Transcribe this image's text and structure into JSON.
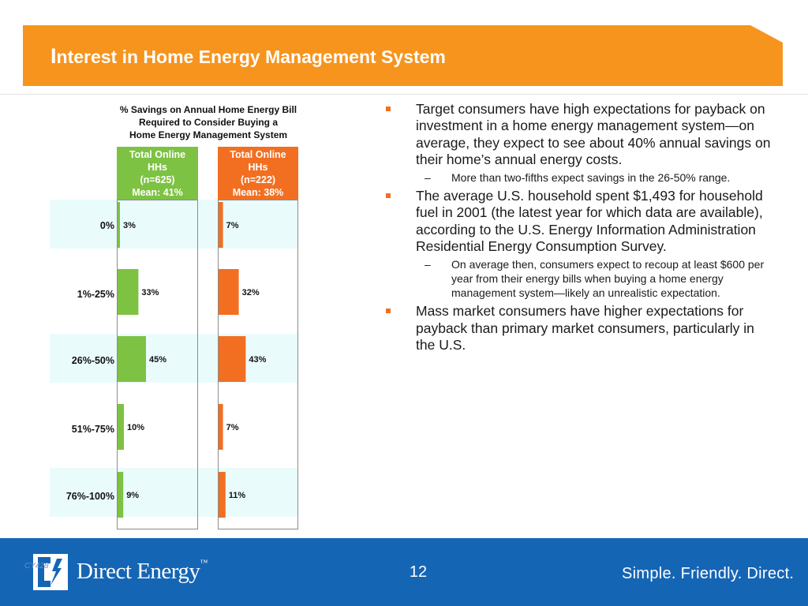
{
  "header": {
    "title_initial": "I",
    "title_rest": "nterest in Home Energy Management System"
  },
  "chart": {
    "title_lines": [
      "% Savings on Annual Home Energy Bill",
      "Required to Consider Buying a",
      "Home Energy Management System"
    ]
  },
  "chart_data": {
    "type": "bar",
    "title": "% Savings on Annual Home Energy Bill Required to Consider Buying a Home Energy Management System",
    "categories": [
      "0%",
      "1%-25%",
      "26%-50%",
      "51%-75%",
      "76%-100%"
    ],
    "series": [
      {
        "name": "Total Online HHs (n=625) Mean: 41%",
        "header_lines": [
          "Total Online",
          "HHs",
          "(n=625)",
          "Mean: 41%"
        ],
        "color": "#7dc242",
        "values": [
          3,
          33,
          45,
          10,
          9
        ],
        "labels": [
          "3%",
          "33%",
          "45%",
          "10%",
          "9%"
        ]
      },
      {
        "name": "Total Online HHs (n=222) Mean: 38%",
        "header_lines": [
          "Total Online",
          "HHs",
          "(n=222)",
          "Mean: 38%"
        ],
        "color": "#f26f21",
        "values": [
          7,
          32,
          43,
          7,
          11
        ],
        "labels": [
          "7%",
          "32%",
          "43%",
          "7%",
          "11%"
        ]
      }
    ],
    "band_color": "#eafbfc"
  },
  "bullets": [
    {
      "text": "Target consumers have high expectations for payback on investment in a home energy management system—on average, they expect to see about 40% annual savings on their home’s annual energy costs.",
      "sub": [
        "More than two-fifths expect savings in the 26-50% range."
      ]
    },
    {
      "text": "The average U.S. household spent $1,493 for household fuel in 2001 (the latest year for which data are available), according to the U.S. Energy Information Administration Residential Energy Consumption Survey.",
      "sub": [
        "On average then, consumers expect to recoup at least $600 per year from their energy bills when buying a home energy management system—likely an unrealistic expectation."
      ]
    },
    {
      "text": "Mass market consumers have higher expectations for payback than primary market consumers, particularly in the U.S.",
      "sub": []
    }
  ],
  "footer": {
    "brand": "Direct Energy",
    "brand_tm": "™",
    "code": "CY428",
    "page_number": "12",
    "tagline": "Simple.  Friendly.  Direct."
  },
  "colors": {
    "banner": "#f7941d",
    "accent": "#f26f21",
    "green": "#7dc242",
    "footer": "#1565b5"
  }
}
